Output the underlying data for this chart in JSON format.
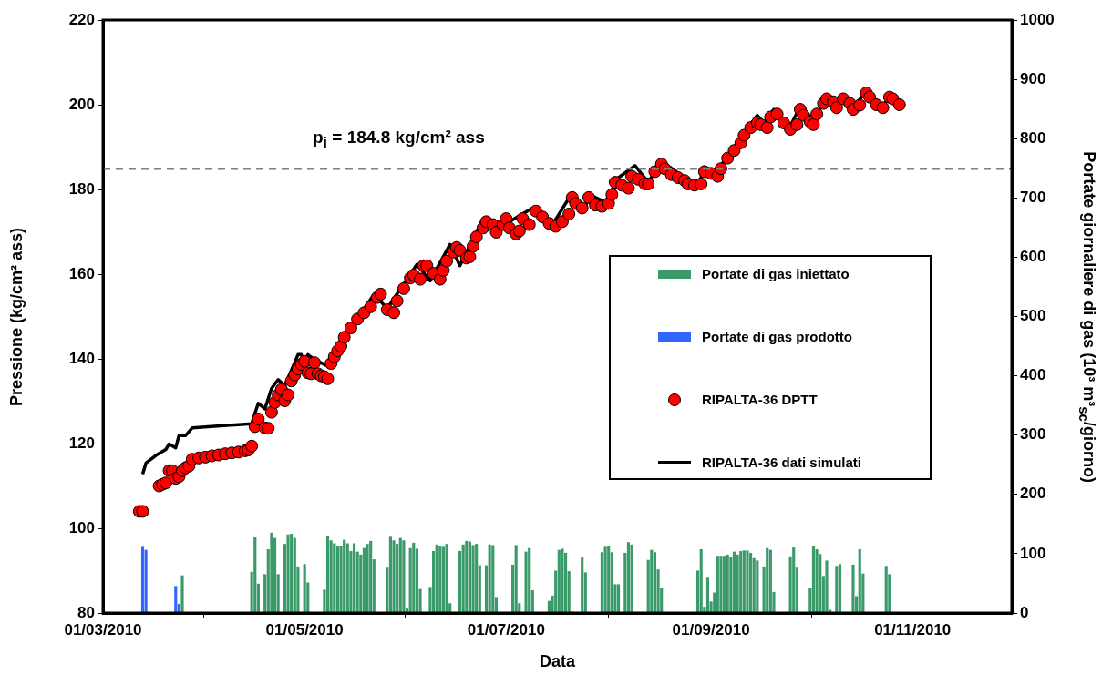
{
  "chart_data": {
    "type": "line",
    "xlabel": "Data",
    "ylabel": "Pressione (kg/cm² ass)",
    "y2label": "Portate giornaliere di gas (10³ m³$_{sc}$/giorno)",
    "xlim": [
      "2010-03-01",
      "2010-12-01"
    ],
    "xticks": [
      {
        "value": "2010-03-01",
        "label": "01/03/2010"
      },
      {
        "value": "2010-05-01",
        "label": "01/05/2010"
      },
      {
        "value": "2010-07-01",
        "label": "01/07/2010"
      },
      {
        "value": "2010-09-01",
        "label": "01/09/2010"
      },
      {
        "value": "2010-11-01",
        "label": "01/11/2010"
      }
    ],
    "ylim": [
      80,
      220
    ],
    "yticks": [
      80,
      100,
      120,
      140,
      160,
      180,
      200,
      220
    ],
    "y2lim": [
      0,
      1000
    ],
    "y2ticks": [
      0,
      100,
      200,
      300,
      400,
      500,
      600,
      700,
      800,
      900,
      1000
    ],
    "grid": false,
    "legend": "right",
    "ref_lines": [
      {
        "axis": "y",
        "value": 184.8,
        "label": "p$_{i}$ = 184.8 kg/cm² ass",
        "color": "#808080",
        "line_style": "dashed"
      }
    ],
    "series": [
      {
        "name": "Portate di gas iniettato",
        "type": "bar",
        "axis": "y2",
        "color": "#3a9a6a",
        "x": [
          "2010-03-25",
          "2010-04-15",
          "2010-04-16",
          "2010-04-17",
          "2010-04-19",
          "2010-04-20",
          "2010-04-21",
          "2010-04-22",
          "2010-04-23",
          "2010-04-25",
          "2010-04-26",
          "2010-04-27",
          "2010-04-28",
          "2010-04-29",
          "2010-05-01",
          "2010-05-02",
          "2010-05-07",
          "2010-05-08",
          "2010-05-09",
          "2010-05-10",
          "2010-05-11",
          "2010-05-12",
          "2010-05-13",
          "2010-05-14",
          "2010-05-15",
          "2010-05-16",
          "2010-05-17",
          "2010-05-18",
          "2010-05-19",
          "2010-05-20",
          "2010-05-21",
          "2010-05-22",
          "2010-05-26",
          "2010-05-27",
          "2010-05-28",
          "2010-05-29",
          "2010-05-30",
          "2010-05-31",
          "2010-06-01",
          "2010-06-02",
          "2010-06-03",
          "2010-06-04",
          "2010-06-05",
          "2010-06-08",
          "2010-06-09",
          "2010-06-10",
          "2010-06-11",
          "2010-06-12",
          "2010-06-13",
          "2010-06-14",
          "2010-06-17",
          "2010-06-18",
          "2010-06-19",
          "2010-06-20",
          "2010-06-21",
          "2010-06-22",
          "2010-06-23",
          "2010-06-25",
          "2010-06-26",
          "2010-06-27",
          "2010-06-28",
          "2010-07-03",
          "2010-07-04",
          "2010-07-05",
          "2010-07-07",
          "2010-07-08",
          "2010-07-09",
          "2010-07-14",
          "2010-07-15",
          "2010-07-16",
          "2010-07-17",
          "2010-07-18",
          "2010-07-19",
          "2010-07-20",
          "2010-07-21",
          "2010-07-24",
          "2010-07-25",
          "2010-07-30",
          "2010-07-31",
          "2010-08-01",
          "2010-08-02",
          "2010-08-03",
          "2010-08-04",
          "2010-08-06",
          "2010-08-07",
          "2010-08-08",
          "2010-08-13",
          "2010-08-14",
          "2010-08-15",
          "2010-08-16",
          "2010-08-17",
          "2010-08-28",
          "2010-08-29",
          "2010-08-30",
          "2010-08-31",
          "2010-09-01",
          "2010-09-02",
          "2010-09-03",
          "2010-09-04",
          "2010-09-05",
          "2010-09-06",
          "2010-09-07",
          "2010-09-08",
          "2010-09-09",
          "2010-09-10",
          "2010-09-11",
          "2010-09-12",
          "2010-09-13",
          "2010-09-14",
          "2010-09-15",
          "2010-09-17",
          "2010-09-18",
          "2010-09-19",
          "2010-09-20",
          "2010-09-25",
          "2010-09-26",
          "2010-09-27",
          "2010-10-01",
          "2010-10-02",
          "2010-10-03",
          "2010-10-04",
          "2010-10-05",
          "2010-10-06",
          "2010-10-07",
          "2010-10-09",
          "2010-10-10",
          "2010-10-14",
          "2010-10-15",
          "2010-10-16",
          "2010-10-17",
          "2010-10-24",
          "2010-10-25"
        ],
        "values": [
          63,
          69,
          127,
          49,
          65,
          107,
          135,
          126,
          65,
          116,
          132,
          133,
          126,
          78,
          82,
          51,
          39,
          130,
          122,
          117,
          112,
          112,
          123,
          117,
          104,
          117,
          103,
          98,
          109,
          116,
          121,
          90,
          76,
          128,
          122,
          116,
          126,
          122,
          7,
          109,
          118,
          108,
          40,
          42,
          104,
          115,
          112,
          111,
          116,
          16,
          104,
          115,
          121,
          120,
          114,
          116,
          80,
          80,
          115,
          114,
          25,
          81,
          114,
          16,
          103,
          109,
          38,
          20,
          29,
          71,
          106,
          108,
          101,
          70,
          2,
          93,
          68,
          102,
          111,
          113,
          102,
          48,
          48,
          101,
          119,
          115,
          89,
          106,
          102,
          73,
          41,
          71,
          107,
          10,
          59,
          19,
          34,
          96,
          96,
          96,
          98,
          94,
          103,
          98,
          104,
          105,
          105,
          101,
          92,
          88,
          78,
          109,
          106,
          35,
          95,
          110,
          76,
          41,
          112,
          107,
          99,
          62,
          88,
          5,
          79,
          82,
          81,
          28,
          107,
          66,
          79,
          65
        ]
      },
      {
        "name": "Portate di gas prodotto",
        "type": "bar",
        "axis": "y2",
        "color": "#3366ff",
        "x": [
          "2010-03-13",
          "2010-03-14",
          "2010-03-23",
          "2010-03-24"
        ],
        "values": [
          111,
          106,
          45,
          15
        ]
      },
      {
        "name": "RIPALTA-36 DPTT",
        "type": "scatter",
        "marker": "circle",
        "color": "#ff0000",
        "x": [
          "2010-03-12",
          "2010-03-13",
          "2010-03-18",
          "2010-03-19",
          "2010-03-20",
          "2010-03-21",
          "2010-03-22",
          "2010-03-23",
          "2010-03-24",
          "2010-03-25",
          "2010-03-26",
          "2010-03-27",
          "2010-03-28",
          "2010-03-30",
          "2010-04-01",
          "2010-04-03",
          "2010-04-05",
          "2010-04-07",
          "2010-04-09",
          "2010-04-11",
          "2010-04-13",
          "2010-04-14",
          "2010-04-15",
          "2010-04-16",
          "2010-04-17",
          "2010-04-19",
          "2010-04-20",
          "2010-04-21",
          "2010-04-22",
          "2010-04-23",
          "2010-04-24",
          "2010-04-25",
          "2010-04-26",
          "2010-04-27",
          "2010-04-28",
          "2010-04-29",
          "2010-04-30",
          "2010-05-01",
          "2010-05-02",
          "2010-05-03",
          "2010-05-04",
          "2010-05-05",
          "2010-05-06",
          "2010-05-07",
          "2010-05-08",
          "2010-05-09",
          "2010-05-10",
          "2010-05-11",
          "2010-05-12",
          "2010-05-13",
          "2010-05-15",
          "2010-05-17",
          "2010-05-19",
          "2010-05-21",
          "2010-05-23",
          "2010-05-24",
          "2010-05-26",
          "2010-05-28",
          "2010-05-29",
          "2010-05-31",
          "2010-06-02",
          "2010-06-03",
          "2010-06-05",
          "2010-06-06",
          "2010-06-07",
          "2010-06-09",
          "2010-06-11",
          "2010-06-12",
          "2010-06-13",
          "2010-06-15",
          "2010-06-16",
          "2010-06-17",
          "2010-06-19",
          "2010-06-20",
          "2010-06-21",
          "2010-06-22",
          "2010-06-24",
          "2010-06-25",
          "2010-06-27",
          "2010-06-28",
          "2010-06-30",
          "2010-07-01",
          "2010-07-02",
          "2010-07-04",
          "2010-07-05",
          "2010-07-06",
          "2010-07-08",
          "2010-07-10",
          "2010-07-12",
          "2010-07-14",
          "2010-07-16",
          "2010-07-18",
          "2010-07-20",
          "2010-07-21",
          "2010-07-22",
          "2010-07-24",
          "2010-07-26",
          "2010-07-28",
          "2010-07-30",
          "2010-08-01",
          "2010-08-02",
          "2010-08-03",
          "2010-08-05",
          "2010-08-07",
          "2010-08-08",
          "2010-08-10",
          "2010-08-12",
          "2010-08-13",
          "2010-08-15",
          "2010-08-17",
          "2010-08-18",
          "2010-08-20",
          "2010-08-22",
          "2010-08-24",
          "2010-08-25",
          "2010-08-27",
          "2010-08-29",
          "2010-08-30",
          "2010-09-01",
          "2010-09-03",
          "2010-09-04",
          "2010-09-06",
          "2010-09-08",
          "2010-09-10",
          "2010-09-11",
          "2010-09-13",
          "2010-09-15",
          "2010-09-16",
          "2010-09-18",
          "2010-09-19",
          "2010-09-21",
          "2010-09-23",
          "2010-09-25",
          "2010-09-27",
          "2010-09-28",
          "2010-09-29",
          "2010-10-01",
          "2010-10-02",
          "2010-10-03",
          "2010-10-05",
          "2010-10-06",
          "2010-10-08",
          "2010-10-09",
          "2010-10-11",
          "2010-10-13",
          "2010-10-14",
          "2010-10-16",
          "2010-10-18",
          "2010-10-19",
          "2010-10-21",
          "2010-10-23",
          "2010-10-25",
          "2010-10-26",
          "2010-10-28"
        ],
        "values": [
          104,
          104,
          110.0,
          110.4,
          110.7,
          113.6,
          113.6,
          111.8,
          112.2,
          113.6,
          114.3,
          114.7,
          116.3,
          116.6,
          116.8,
          117.1,
          117.3,
          117.6,
          117.8,
          118.0,
          118.3,
          118.5,
          119.4,
          124.0,
          125.8,
          123.7,
          123.6,
          127.4,
          129.7,
          131.5,
          132.8,
          130.1,
          131.5,
          134.8,
          136.2,
          137.6,
          138.7,
          139.4,
          136.7,
          136.5,
          139.1,
          136.5,
          136.0,
          135.8,
          135.3,
          138.9,
          140.5,
          141.9,
          143.0,
          145.1,
          147.3,
          149.4,
          150.9,
          152.3,
          154.5,
          155.3,
          151.6,
          150.9,
          153.7,
          156.6,
          159.1,
          159.8,
          158.8,
          162.0,
          162.0,
          160.2,
          158.8,
          160.9,
          163.1,
          165.2,
          166.3,
          165.6,
          163.8,
          164.1,
          166.6,
          168.8,
          170.9,
          172.4,
          171.7,
          169.9,
          171.7,
          173.1,
          170.9,
          169.5,
          170.2,
          173.1,
          171.7,
          174.9,
          173.5,
          172.0,
          171.3,
          172.4,
          174.2,
          178.1,
          176.7,
          175.6,
          178.1,
          176.3,
          176.0,
          176.7,
          178.8,
          181.7,
          181.0,
          180.3,
          183.1,
          182.4,
          181.3,
          181.3,
          184.2,
          186.0,
          184.9,
          183.5,
          182.8,
          182.1,
          181.3,
          181.0,
          181.3,
          184.2,
          183.8,
          183.1,
          184.9,
          187.4,
          189.2,
          191.0,
          192.8,
          194.6,
          195.7,
          195.3,
          194.6,
          197.1,
          197.8,
          195.7,
          194.2,
          195.3,
          198.9,
          197.5,
          196.0,
          195.3,
          197.8,
          200.3,
          201.4,
          200.7,
          199.3,
          201.4,
          200.3,
          198.9,
          199.9,
          202.8,
          201.8,
          200.0,
          199.3,
          201.8,
          201.4,
          200.0
        ]
      },
      {
        "name": "RIPALTA-36 dati simulati",
        "color": "#000000",
        "x": [
          "2010-03-13",
          "2010-03-14",
          "2010-03-17",
          "2010-03-20",
          "2010-03-21",
          "2010-03-23",
          "2010-03-24",
          "2010-03-26",
          "2010-03-28",
          "2010-04-15",
          "2010-04-16",
          "2010-04-17",
          "2010-04-19",
          "2010-04-21",
          "2010-04-23",
          "2010-04-25",
          "2010-04-28",
          "2010-04-29",
          "2010-04-30",
          "2010-05-01",
          "2010-05-02",
          "2010-05-04",
          "2010-05-08",
          "2010-05-09",
          "2010-05-10",
          "2010-05-22",
          "2010-05-26",
          "2010-06-04",
          "2010-06-08",
          "2010-06-14",
          "2010-06-17",
          "2010-06-24",
          "2010-06-29",
          "2010-07-05",
          "2010-07-09",
          "2010-07-15",
          "2010-07-21",
          "2010-07-24",
          "2010-07-27",
          "2010-07-31",
          "2010-08-04",
          "2010-08-09",
          "2010-08-13",
          "2010-08-17",
          "2010-08-28",
          "2010-08-30",
          "2010-09-01",
          "2010-09-03",
          "2010-09-15",
          "2010-09-17",
          "2010-09-20",
          "2010-09-25",
          "2010-09-28",
          "2010-10-02",
          "2010-10-06",
          "2010-10-09",
          "2010-10-11",
          "2010-10-14",
          "2010-10-18",
          "2010-10-23",
          "2010-10-25",
          "2010-10-28"
        ],
        "values": [
          112.8,
          115.4,
          117.2,
          118.6,
          119.9,
          119.0,
          121.9,
          121.9,
          123.7,
          124.7,
          127.2,
          129.5,
          128.2,
          133.0,
          135.1,
          133.7,
          139.1,
          141.0,
          141.0,
          139.1,
          141.0,
          139.8,
          138.3,
          140.5,
          141.6,
          155.2,
          151.9,
          162.3,
          158.4,
          167.0,
          162.0,
          173.1,
          170.9,
          173.8,
          175.6,
          171.7,
          179.2,
          175.2,
          178.5,
          177.0,
          182.8,
          185.6,
          181.7,
          186.7,
          180.6,
          185.3,
          184.6,
          184.6,
          197.5,
          195.7,
          198.9,
          195.0,
          199.6,
          196.4,
          201.8,
          200.0,
          202.1,
          199.3,
          203.2,
          199.6,
          202.1,
          200.3
        ]
      }
    ]
  }
}
